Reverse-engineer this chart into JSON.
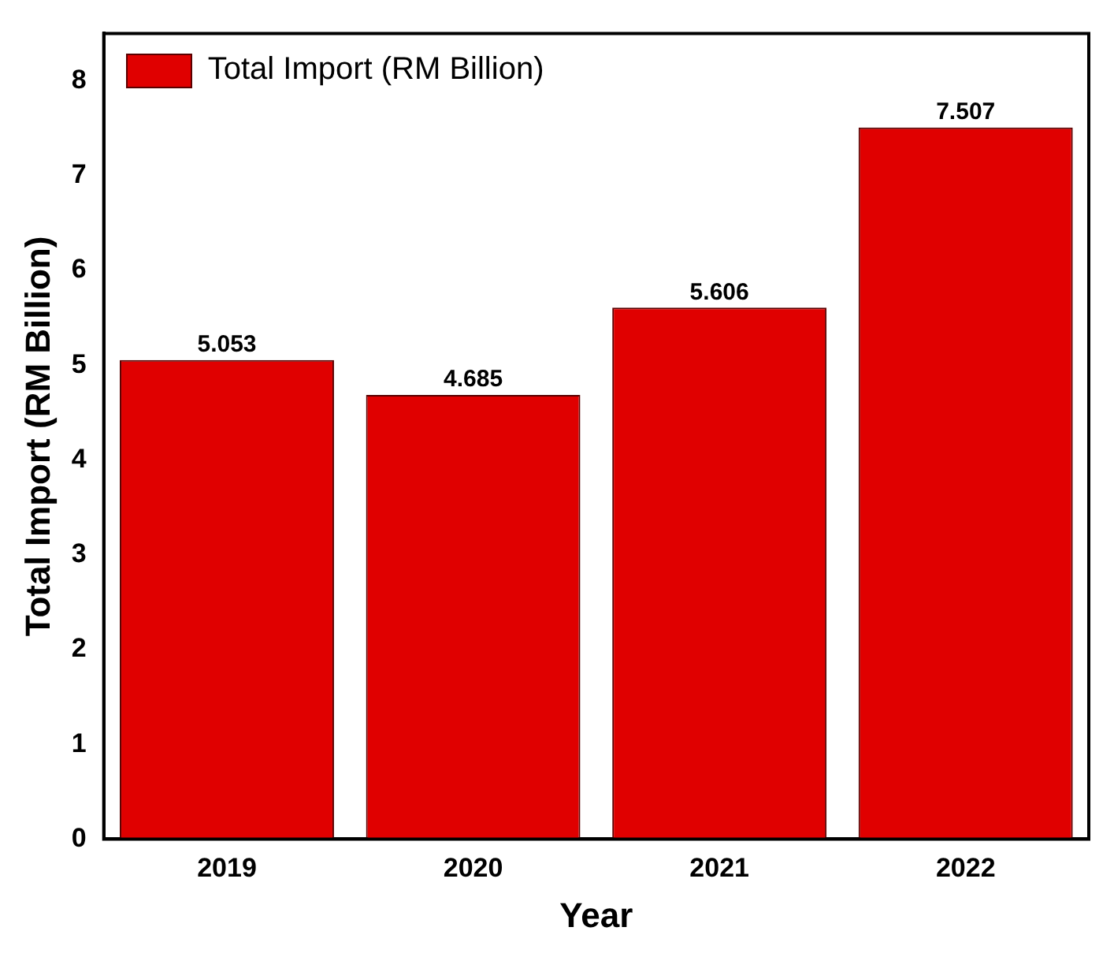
{
  "chart_data": {
    "type": "bar",
    "xlabel": "Year",
    "ylabel": "Total Import (RM Billion)",
    "categories": [
      "2019",
      "2020",
      "2021",
      "2022"
    ],
    "series": [
      {
        "name": "Total Import (RM Billion)",
        "color": "#e00000",
        "values": [
          5.053,
          4.685,
          5.606,
          7.507
        ]
      }
    ],
    "ylim": [
      0,
      8.5
    ],
    "yticks": [
      0,
      1,
      2,
      3,
      4,
      5,
      6,
      7,
      8
    ],
    "data_labels": true,
    "legend": "top left",
    "grid": false
  }
}
